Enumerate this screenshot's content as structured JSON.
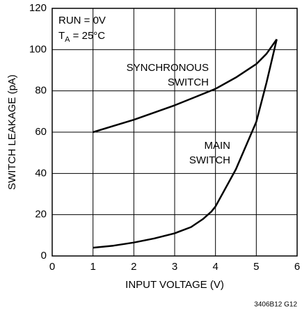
{
  "chart_data": {
    "type": "line",
    "xlabel": "INPUT VOLTAGE (V)",
    "ylabel": "SWITCH LEAKAGE (pA)",
    "annotations": {
      "run": "RUN = 0V",
      "ta_main": "T",
      "ta_sub": "A",
      "ta_rest": " = 25°C"
    },
    "footer": "3406B12 G12",
    "xlim": [
      0,
      6
    ],
    "xticks": [
      0,
      1,
      2,
      3,
      4,
      5,
      6
    ],
    "ylim": [
      0,
      120
    ],
    "yticks": [
      0,
      20,
      40,
      60,
      80,
      100,
      120
    ],
    "grid": true,
    "series": [
      {
        "label": [
          "SYNCHRONOUS",
          "SWITCH"
        ],
        "color": "#000000",
        "x": [
          1,
          1.5,
          2,
          2.5,
          3,
          3.5,
          4,
          4.5,
          5,
          5.25,
          5.5
        ],
        "values": [
          60,
          63,
          66,
          69.5,
          73,
          77,
          81,
          86.5,
          93,
          98,
          105
        ]
      },
      {
        "label": [
          "MAIN",
          "SWITCH"
        ],
        "color": "#000000",
        "x": [
          1,
          1.5,
          2,
          2.5,
          3,
          3.4,
          3.7,
          3.9,
          4,
          4.5,
          5,
          5.25,
          5.5
        ],
        "values": [
          4,
          5,
          6.5,
          8.5,
          11,
          14,
          18,
          21.5,
          24,
          42,
          65,
          84,
          105
        ]
      }
    ]
  }
}
